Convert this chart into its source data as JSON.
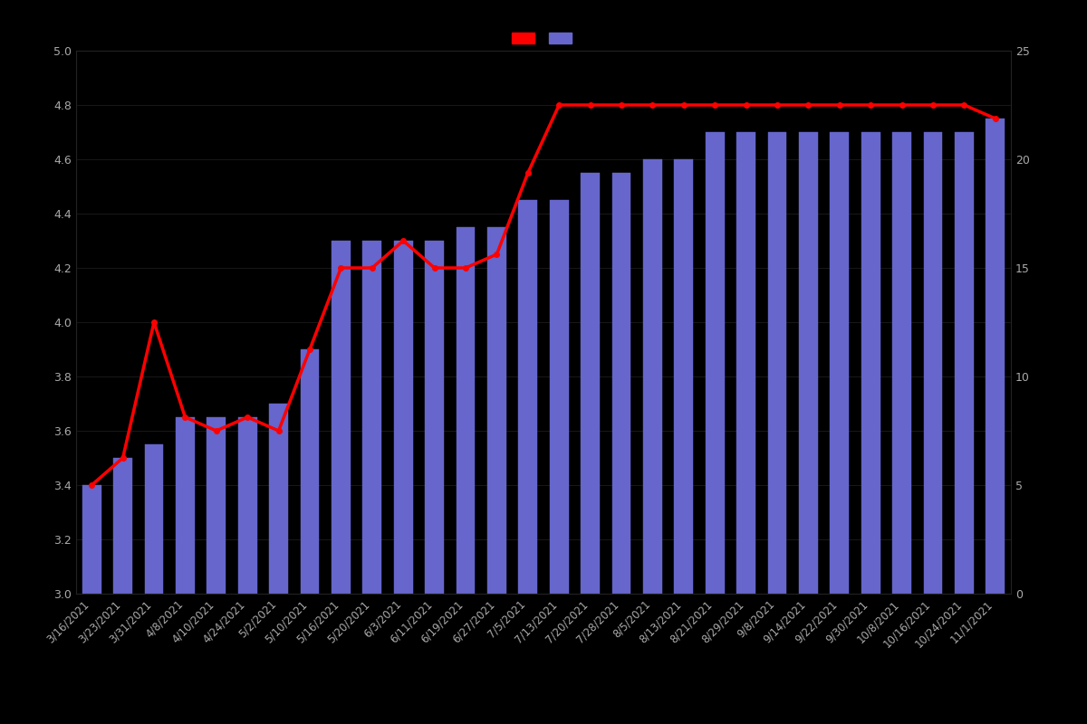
{
  "dates": [
    "3/16/2021",
    "3/23/2021",
    "3/31/2021",
    "4/8/2021",
    "4/10/2021",
    "4/24/2021",
    "5/2/2021",
    "5/10/2021",
    "5/16/2021",
    "5/20/2021",
    "6/3/2021",
    "6/11/2021",
    "6/19/2021",
    "6/27/2021",
    "7/5/2021",
    "7/13/2021",
    "7/20/2021",
    "7/28/2021",
    "8/5/2021",
    "8/13/2021",
    "8/21/2021",
    "8/29/2021",
    "9/8/2021",
    "9/14/2021",
    "9/22/2021",
    "9/30/2021",
    "10/8/2021",
    "10/16/2021",
    "10/24/2021",
    "11/1/2021"
  ],
  "bar_values": [
    3.4,
    3.5,
    3.55,
    3.65,
    3.65,
    3.65,
    3.7,
    3.9,
    4.3,
    4.3,
    4.3,
    4.3,
    4.35,
    4.35,
    4.45,
    4.45,
    4.55,
    4.55,
    4.6,
    4.6,
    4.7,
    4.7,
    4.7,
    4.7,
    4.7,
    4.7,
    4.7,
    4.7,
    4.7,
    4.75
  ],
  "line_values": [
    3.4,
    3.5,
    4.0,
    3.65,
    3.6,
    3.65,
    3.6,
    3.9,
    4.2,
    4.2,
    4.3,
    4.2,
    4.2,
    4.25,
    4.55,
    4.8,
    4.8,
    4.8,
    4.8,
    4.8,
    4.8,
    4.8,
    4.8,
    4.8,
    4.8,
    4.8,
    4.8,
    4.8,
    4.8,
    4.75
  ],
  "bar_color": "#6666cc",
  "bar_edge_color": "#6666cc",
  "line_color": "#ff0000",
  "background_color": "#000000",
  "text_color": "#aaaaaa",
  "ylim_left": [
    3.0,
    5.0
  ],
  "ylim_right": [
    0,
    25
  ],
  "yticks_left": [
    3.0,
    3.2,
    3.4,
    3.6,
    3.8,
    4.0,
    4.2,
    4.4,
    4.6,
    4.8,
    5.0
  ],
  "yticks_right": [
    0,
    5,
    10,
    15,
    20,
    25
  ],
  "grid_color": "#222222",
  "legend_labels": [
    "",
    ""
  ]
}
